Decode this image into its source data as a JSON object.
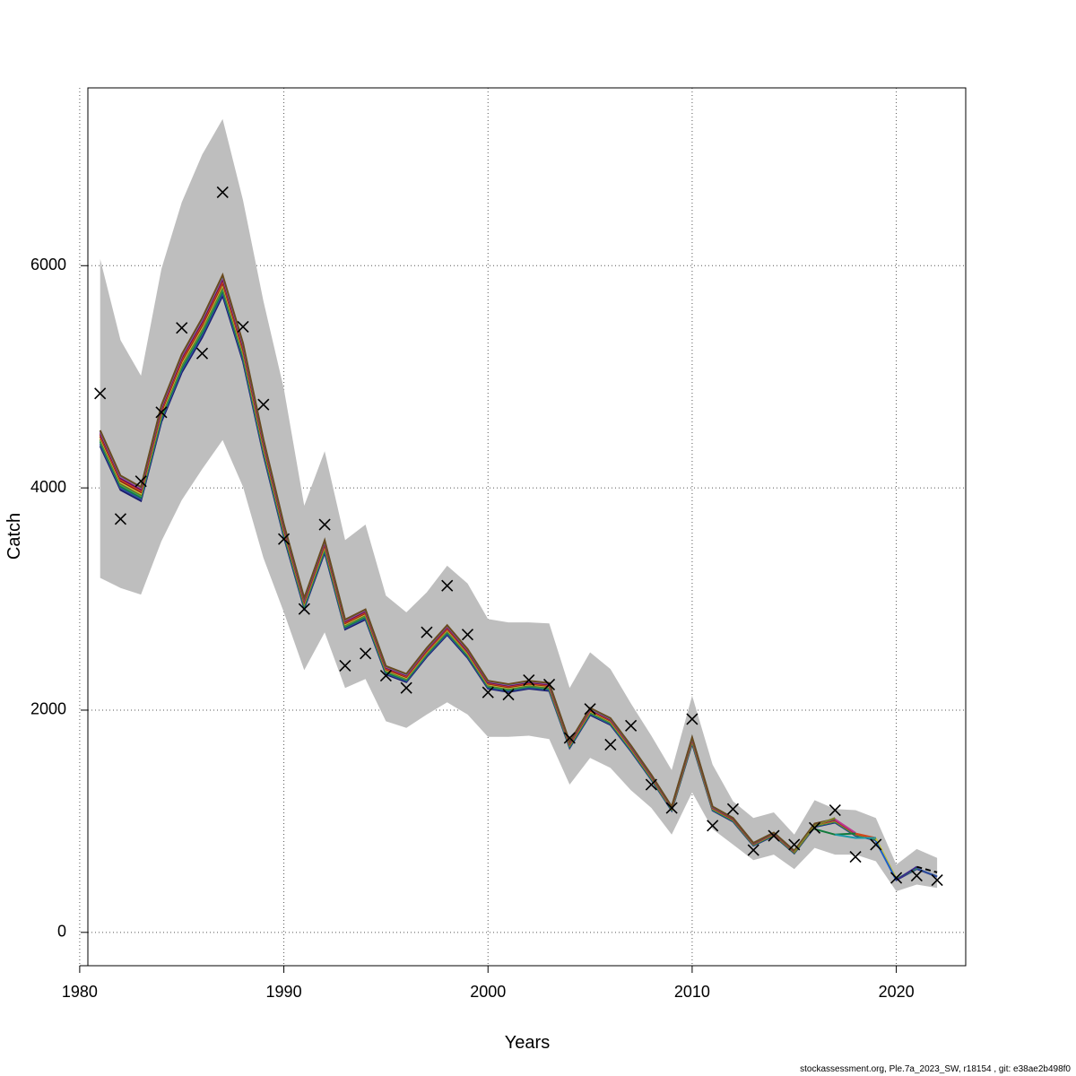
{
  "chart_data": {
    "type": "line",
    "xlabel": "Years",
    "ylabel": "Catch",
    "xlim": [
      1980.4,
      2023.4
    ],
    "ylim": [
      -300,
      7600
    ],
    "xticks": [
      1980,
      1990,
      2000,
      2010,
      2020
    ],
    "yticks": [
      0,
      2000,
      4000,
      6000
    ],
    "grid": true,
    "x": [
      1981,
      1982,
      1983,
      1984,
      1985,
      1986,
      1987,
      1988,
      1989,
      1990,
      1991,
      1992,
      1993,
      1994,
      1995,
      1996,
      1997,
      1998,
      1999,
      2000,
      2001,
      2002,
      2003,
      2004,
      2005,
      2006,
      2007,
      2008,
      2009,
      2010,
      2011,
      2012,
      2013,
      2014,
      2015,
      2016,
      2017,
      2018,
      2019,
      2020,
      2021,
      2022
    ],
    "observed": [
      4850,
      3720,
      4060,
      4680,
      5440,
      5210,
      6660,
      5450,
      4750,
      3540,
      2910,
      3670,
      2400,
      2510,
      2310,
      2200,
      2700,
      3120,
      2680,
      2160,
      2140,
      2270,
      2230,
      1750,
      2010,
      1690,
      1860,
      1330,
      1120,
      1920,
      960,
      1110,
      740,
      870,
      790,
      940,
      1100,
      680,
      790,
      490,
      510,
      470
    ],
    "fit": [
      4430,
      4030,
      3930,
      4650,
      5100,
      5420,
      5800,
      5200,
      4350,
      3600,
      2950,
      3460,
      2760,
      2850,
      2350,
      2280,
      2510,
      2710,
      2500,
      2220,
      2190,
      2220,
      2200,
      1680,
      1980,
      1890,
      1650,
      1390,
      1110,
      1720,
      1110,
      1010,
      790,
      880,
      720,
      960,
      1000,
      880,
      840,
      480,
      580,
      510
    ],
    "ci_lower": [
      3190,
      3100,
      3040,
      3520,
      3890,
      4170,
      4430,
      4010,
      3370,
      2880,
      2360,
      2700,
      2200,
      2280,
      1900,
      1840,
      1960,
      2070,
      1960,
      1760,
      1760,
      1770,
      1740,
      1330,
      1570,
      1480,
      1280,
      1120,
      880,
      1260,
      930,
      790,
      650,
      700,
      570,
      760,
      700,
      700,
      640,
      370,
      430,
      400
    ],
    "ci_upper": [
      6060,
      5330,
      5010,
      5970,
      6570,
      7000,
      7320,
      6590,
      5680,
      4890,
      3840,
      4330,
      3530,
      3670,
      3030,
      2880,
      3060,
      3300,
      3140,
      2820,
      2790,
      2790,
      2780,
      2200,
      2520,
      2370,
      2060,
      1770,
      1460,
      2130,
      1510,
      1180,
      1030,
      1080,
      880,
      1190,
      1110,
      1100,
      1030,
      610,
      750,
      670
    ],
    "retro_colors": [
      "#1b1b6e",
      "#2d4f9e",
      "#117a3c",
      "#3a9e5a",
      "#6e6e1e",
      "#c9c53c",
      "#8b1a1a",
      "#d44a1c",
      "#5a0d5a",
      "#c2378f",
      "#2ba8d8",
      "#6b4a1e"
    ],
    "retro_offsets": [
      -60,
      -40,
      -20,
      -5,
      10,
      25,
      40,
      55,
      70,
      85,
      95,
      100
    ],
    "peels": [
      {
        "color": "#7f7f2e",
        "x": [
          2015,
          2016,
          2017
        ],
        "y": [
          720,
          960,
          1030
        ]
      },
      {
        "color": "#117a3c",
        "x": [
          2016,
          2017,
          2018
        ],
        "y": [
          930,
          880,
          890
        ]
      },
      {
        "color": "#1a9aa8",
        "x": [
          2017,
          2018,
          2019
        ],
        "y": [
          880,
          850,
          850
        ]
      },
      {
        "color": "#1c5fc9",
        "x": [
          2019,
          2020
        ],
        "y": [
          820,
          470
        ]
      },
      {
        "color": "#3b2a8c",
        "x": [
          2020,
          2021
        ],
        "y": [
          470,
          590
        ]
      },
      {
        "color": "#000000",
        "x": [
          2021,
          2022
        ],
        "y": [
          590,
          540
        ],
        "dashed": true
      }
    ]
  },
  "footer": "stockassessment.org, Ple.7a_2023_SW, r18154 , git: e38ae2b498f0"
}
